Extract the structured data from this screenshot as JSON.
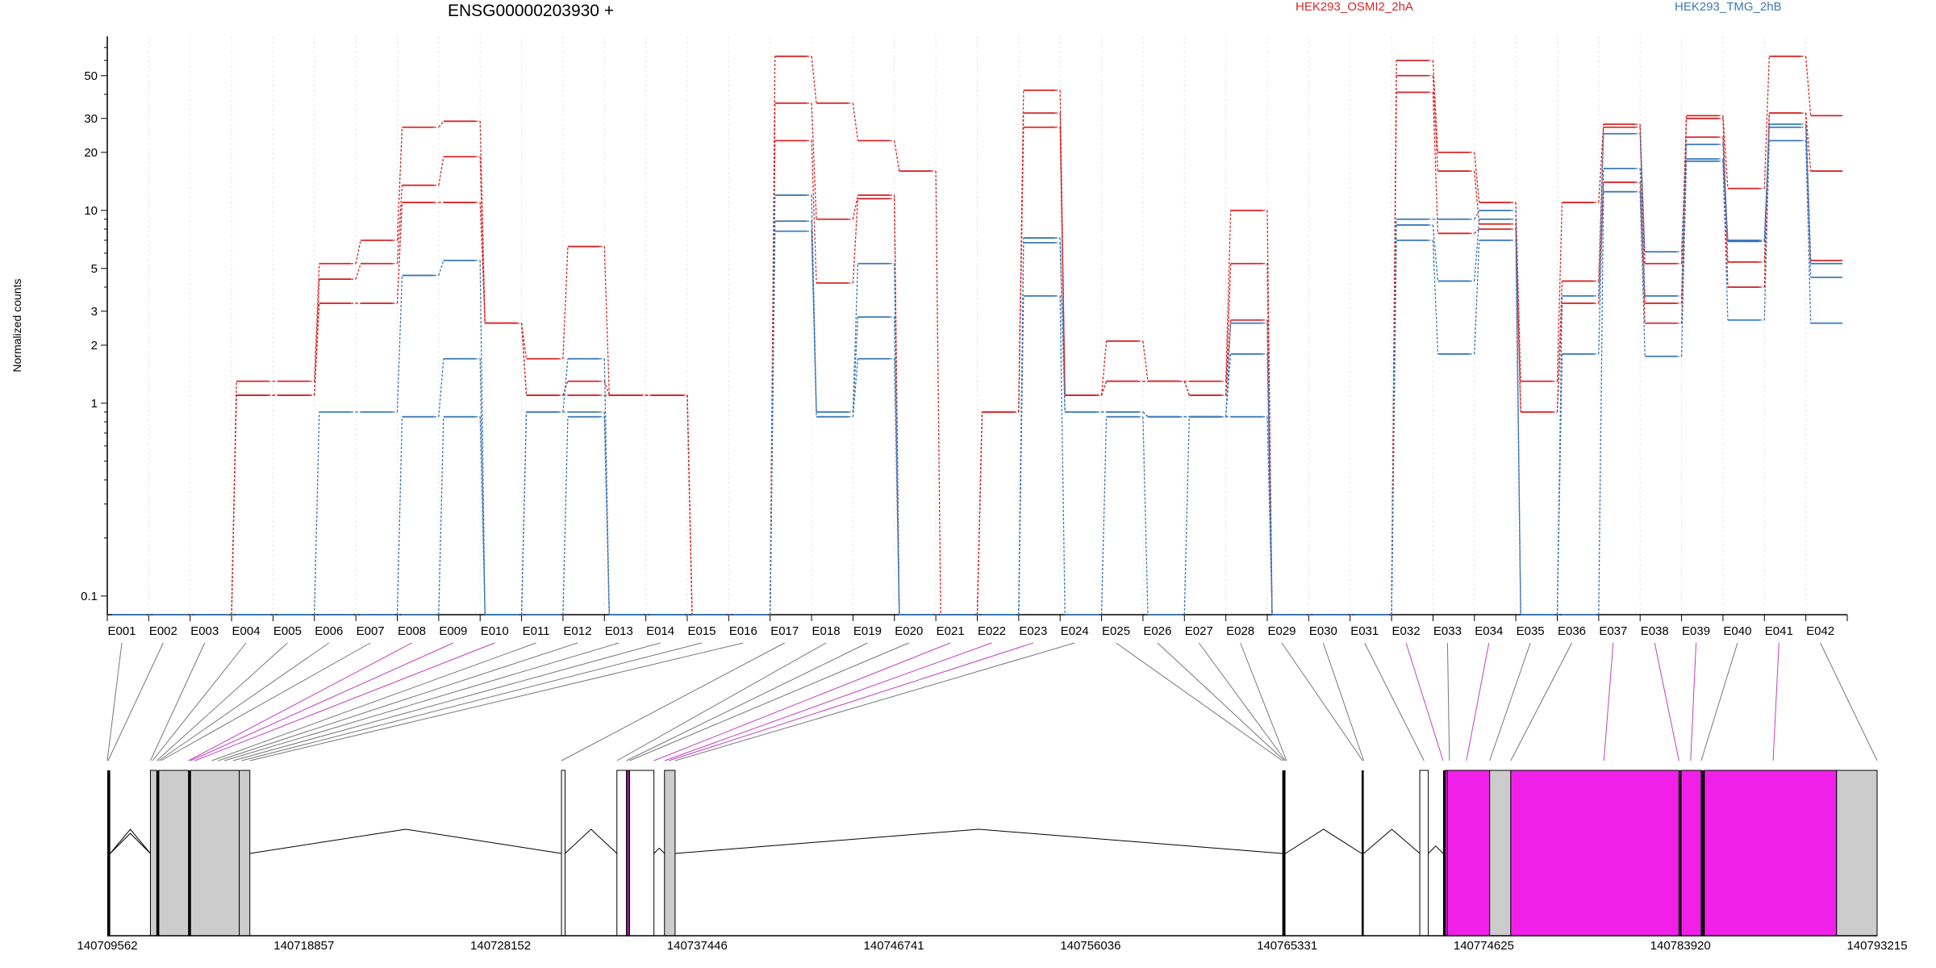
{
  "chart_data": {
    "type": "line",
    "title": "ENSG00000203930 +",
    "ylabel": "Normalized counts",
    "yscale": "log",
    "ylim": [
      0.08,
      80
    ],
    "yticks": [
      "0.1",
      "1",
      "2",
      "3",
      "5",
      "10",
      "20",
      "30",
      "50"
    ],
    "categories": [
      "E001",
      "E002",
      "E003",
      "E004",
      "E005",
      "E006",
      "E007",
      "E008",
      "E009",
      "E010",
      "E011",
      "E012",
      "E013",
      "E014",
      "E015",
      "E016",
      "E017",
      "E018",
      "E019",
      "E020",
      "E021",
      "E022",
      "E023",
      "E024",
      "E025",
      "E026",
      "E027",
      "E028",
      "E029",
      "E030",
      "E031",
      "E032",
      "E033",
      "E034",
      "E035",
      "E036",
      "E037",
      "E038",
      "E039",
      "E040",
      "E041",
      "E042"
    ],
    "legend": [
      {
        "name": "HEK293_OSMI2_2hA",
        "color": "#d62728"
      },
      {
        "name": "HEK293_TMG_2hB",
        "color": "#3a78b7"
      }
    ],
    "series": [
      {
        "group": "HEK293_OSMI2_2hA",
        "color": "#d62728",
        "values": [
          0.08,
          0.08,
          0.08,
          1.3,
          1.3,
          5.3,
          7,
          27,
          29,
          2.6,
          1.7,
          6.5,
          1.1,
          1.1,
          0.08,
          0.08,
          63,
          36,
          23,
          16,
          0.08,
          0.9,
          42,
          1.1,
          2.1,
          1.3,
          1.3,
          10,
          0.08,
          0.08,
          0.08,
          60,
          20,
          11,
          1.3,
          11,
          28,
          5.3,
          31,
          13,
          63,
          31
        ]
      },
      {
        "group": "HEK293_OSMI2_2hA",
        "color": "#d62728",
        "values": [
          0.08,
          0.08,
          0.08,
          1.1,
          1.1,
          4.4,
          5.3,
          13.5,
          19,
          2.6,
          1.1,
          1.3,
          1.1,
          1.1,
          0.08,
          0.08,
          36,
          9,
          12,
          0.08,
          0.08,
          0.9,
          32,
          1.1,
          1.3,
          1.3,
          1.1,
          5.3,
          0.08,
          0.08,
          0.08,
          50,
          16,
          8.5,
          0.9,
          4.3,
          27,
          3.3,
          30,
          5.4,
          32,
          16
        ]
      },
      {
        "group": "HEK293_OSMI2_2hA",
        "color": "#d62728",
        "values": [
          0.08,
          0.08,
          0.08,
          1.1,
          1.1,
          3.3,
          3.3,
          11,
          11,
          2.6,
          1.1,
          1.1,
          1.1,
          1.1,
          0.08,
          0.08,
          23,
          4.2,
          11.5,
          0.08,
          0.08,
          0.9,
          27,
          1.1,
          1.3,
          1.3,
          1.1,
          2.7,
          0.08,
          0.08,
          0.08,
          41,
          7.6,
          8,
          0.9,
          3.3,
          14,
          2.6,
          24,
          4,
          32,
          5.5
        ]
      },
      {
        "group": "HEK293_TMG_2hB",
        "color": "#3a78b7",
        "values": [
          0.08,
          0.08,
          0.08,
          0.08,
          0.08,
          0.9,
          0.9,
          4.6,
          5.5,
          0.08,
          0.9,
          1.7,
          0.08,
          0.08,
          0.08,
          0.08,
          12,
          0.9,
          5.3,
          0.08,
          0.08,
          0.08,
          7.2,
          0.9,
          0.9,
          0.85,
          0.85,
          2.6,
          0.08,
          0.08,
          0.08,
          9,
          9,
          10,
          0.08,
          3.6,
          25,
          6.1,
          22,
          7,
          28,
          5.3
        ]
      },
      {
        "group": "HEK293_TMG_2hB",
        "color": "#3a78b7",
        "values": [
          0.08,
          0.08,
          0.08,
          0.08,
          0.08,
          0.08,
          0.08,
          0.85,
          1.7,
          0.08,
          0.9,
          0.9,
          0.08,
          0.08,
          0.08,
          0.08,
          8.8,
          0.9,
          2.8,
          0.08,
          0.08,
          0.08,
          6.8,
          0.9,
          0.9,
          0.85,
          0.85,
          1.8,
          0.08,
          0.08,
          0.08,
          8.4,
          4.3,
          9,
          0.08,
          1.8,
          16.5,
          3.6,
          18.5,
          6.9,
          27,
          4.5
        ]
      },
      {
        "group": "HEK293_TMG_2hB",
        "color": "#3a78b7",
        "values": [
          0.08,
          0.08,
          0.08,
          0.08,
          0.08,
          0.08,
          0.08,
          0.08,
          0.85,
          0.08,
          0.08,
          0.85,
          0.08,
          0.08,
          0.08,
          0.08,
          7.8,
          0.85,
          1.7,
          0.08,
          0.08,
          0.08,
          3.6,
          0.08,
          0.85,
          0.08,
          0.85,
          0.85,
          0.08,
          0.08,
          0.08,
          7,
          1.8,
          7,
          0.08,
          0.08,
          12.5,
          1.75,
          18,
          2.7,
          23,
          2.6
        ]
      }
    ],
    "genome_ticks": [
      "140709562",
      "140718857",
      "140728152",
      "140737446",
      "140746741",
      "140756036",
      "140765331",
      "140774625",
      "140783920",
      "140793215"
    ],
    "genome_range": [
      140709562,
      140793215
    ],
    "track": {
      "exon_fill": "#cccccc",
      "highlight_fill": "#f020e8",
      "link_color": "#777777",
      "highlight_link_color": "#c040c0",
      "exons": [
        {
          "s": 140709562,
          "e": 140709700,
          "k": "black"
        },
        {
          "s": 140711600,
          "e": 140711900,
          "k": "grey"
        },
        {
          "s": 140711900,
          "e": 140712000,
          "k": "black"
        },
        {
          "s": 140712000,
          "e": 140713400,
          "k": "grey"
        },
        {
          "s": 140713400,
          "e": 140713500,
          "k": "black"
        },
        {
          "s": 140713500,
          "e": 140715800,
          "k": "grey"
        },
        {
          "s": 140715800,
          "e": 140716300,
          "k": "grey"
        },
        {
          "s": 140731030,
          "e": 140731200,
          "k": "white"
        },
        {
          "s": 140733650,
          "e": 140734100,
          "k": "white"
        },
        {
          "s": 140734100,
          "e": 140734250,
          "k": "purple"
        },
        {
          "s": 140734250,
          "e": 140735400,
          "k": "white"
        },
        {
          "s": 140735900,
          "e": 140736400,
          "k": "grey"
        },
        {
          "s": 140765100,
          "e": 140765250,
          "k": "black"
        },
        {
          "s": 140768850,
          "e": 140768950,
          "k": "black"
        },
        {
          "s": 140771600,
          "e": 140772000,
          "k": "white"
        },
        {
          "s": 140772700,
          "e": 140772800,
          "k": "black"
        },
        {
          "s": 140772800,
          "e": 140772900,
          "k": "magenta"
        },
        {
          "s": 140772900,
          "e": 140774900,
          "k": "magenta"
        },
        {
          "s": 140774900,
          "e": 140775900,
          "k": "grey"
        },
        {
          "s": 140775900,
          "e": 140783850,
          "k": "magenta"
        },
        {
          "s": 140783850,
          "e": 140783950,
          "k": "black"
        },
        {
          "s": 140783950,
          "e": 140784900,
          "k": "magenta"
        },
        {
          "s": 140784900,
          "e": 140785050,
          "k": "black"
        },
        {
          "s": 140785050,
          "e": 140791300,
          "k": "magenta"
        },
        {
          "s": 140791300,
          "e": 140793215,
          "k": "grey"
        }
      ],
      "link_targets": [
        140709562,
        140709600,
        140711600,
        140711700,
        140711900,
        140712000,
        140712100,
        140713400,
        140713500,
        140713700,
        140714500,
        140714800,
        140715100,
        140715500,
        140715900,
        140716300,
        140731030,
        140733650,
        140734100,
        140734250,
        140735400,
        140735900,
        140736100,
        140736400,
        140765100,
        140765200,
        140765250,
        140765300,
        140768900,
        140768950,
        140771800,
        140772700,
        140773000,
        140773800,
        140774900,
        140775900,
        140780300,
        140783850,
        140784400,
        140784900,
        140788300,
        140793215
      ],
      "highlight_links": [
        7,
        8,
        9,
        20,
        21,
        22,
        31,
        33,
        36,
        37,
        38,
        40
      ]
    }
  },
  "title": "ENSG00000203930 +",
  "legend_a": "HEK293_OSMI2_2hA",
  "legend_b": "HEK293_TMG_2hB"
}
